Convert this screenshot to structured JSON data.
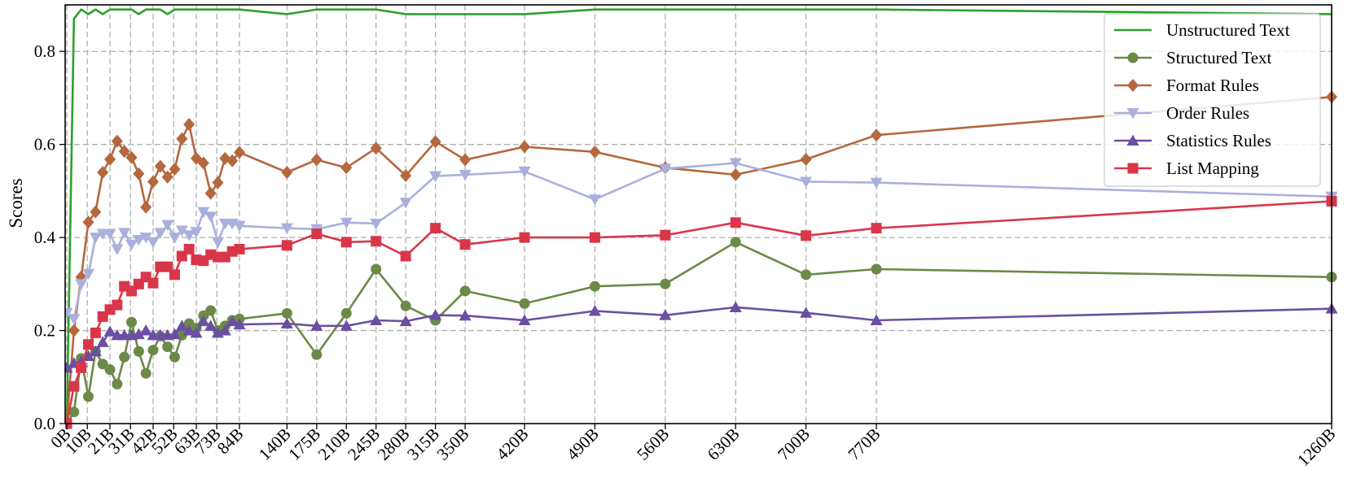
{
  "chart_data": {
    "type": "line",
    "ylabel": "Scores",
    "xlabel": "",
    "ylim": [
      0,
      0.9
    ],
    "yticks": [
      0.0,
      0.2,
      0.4,
      0.6,
      0.8
    ],
    "ytick_labels": [
      "0.0",
      "0.2",
      "0.4",
      "0.6",
      "0.8"
    ],
    "xticks": [
      0,
      10,
      21,
      31,
      42,
      52,
      63,
      73,
      84,
      140,
      175,
      210,
      245,
      280,
      315,
      350,
      420,
      490,
      560,
      630,
      700,
      770,
      1260
    ],
    "xtick_labels": [
      "0B",
      "10B",
      "21B",
      "31B",
      "42B",
      "52B",
      "63B",
      "73B",
      "84B",
      "140B",
      "175B",
      "210B",
      "245B",
      "280B",
      "315B",
      "350B",
      "420B",
      "490B",
      "560B",
      "630B",
      "700B",
      "770B",
      "1260B"
    ],
    "x_scale": "piecewise-linear (ticks evenly spaced in groups)",
    "grid": "dashed vertical at x ticks; dashed horizontal at y ticks",
    "legend_position": "top-right",
    "x": [
      0,
      3.5,
      7,
      10.5,
      14,
      17.5,
      21,
      24.5,
      28,
      31.5,
      35,
      38.5,
      42,
      45.5,
      49,
      52.5,
      56,
      59.5,
      63,
      66.5,
      70,
      73.5,
      77,
      80.5,
      84,
      140,
      175,
      210,
      245,
      280,
      315,
      350,
      420,
      490,
      560,
      630,
      700,
      770,
      1260
    ],
    "series": [
      {
        "name": "Unstructured Text",
        "color": "#2ca02c",
        "marker": "none",
        "values": [
          0.0,
          0.87,
          0.89,
          0.88,
          0.89,
          0.88,
          0.89,
          0.89,
          0.89,
          0.89,
          0.88,
          0.89,
          0.89,
          0.89,
          0.88,
          0.89,
          0.89,
          0.89,
          0.89,
          0.89,
          0.89,
          0.89,
          0.89,
          0.89,
          0.89,
          0.88,
          0.89,
          0.89,
          0.89,
          0.88,
          0.88,
          0.88,
          0.88,
          0.89,
          0.89,
          0.89,
          0.89,
          0.89,
          0.88
        ]
      },
      {
        "name": "Structured Text",
        "color": "#6b8a47",
        "marker": "circle",
        "values": [
          0.0,
          0.025,
          0.14,
          0.058,
          0.155,
          0.128,
          0.116,
          0.085,
          0.143,
          0.218,
          0.155,
          0.108,
          0.158,
          0.188,
          0.165,
          0.143,
          0.19,
          0.215,
          0.205,
          0.232,
          0.243,
          0.2,
          0.21,
          0.222,
          0.225,
          0.237,
          0.148,
          0.237,
          0.332,
          0.253,
          0.222,
          0.285,
          0.258,
          0.295,
          0.3,
          0.39,
          0.32,
          0.332,
          0.315
        ]
      },
      {
        "name": "Format Rules",
        "color": "#b5673d",
        "marker": "diamond",
        "values": [
          0.0,
          0.2,
          0.315,
          0.433,
          0.455,
          0.54,
          0.568,
          0.607,
          0.585,
          0.572,
          0.537,
          0.465,
          0.52,
          0.553,
          0.53,
          0.547,
          0.612,
          0.643,
          0.57,
          0.56,
          0.495,
          0.518,
          0.57,
          0.565,
          0.583,
          0.54,
          0.567,
          0.55,
          0.592,
          0.533,
          0.606,
          0.567,
          0.595,
          0.584,
          0.55,
          0.535,
          0.568,
          0.62,
          0.702
        ]
      },
      {
        "name": "Order Rules",
        "color": "#aab0dc",
        "marker": "triangle-down",
        "values": [
          0.238,
          0.225,
          0.3,
          0.322,
          0.4,
          0.408,
          0.408,
          0.375,
          0.41,
          0.385,
          0.395,
          0.4,
          0.39,
          0.41,
          0.427,
          0.4,
          0.415,
          0.405,
          0.412,
          0.455,
          0.445,
          0.39,
          0.43,
          0.43,
          0.425,
          0.42,
          0.418,
          0.432,
          0.43,
          0.475,
          0.532,
          0.535,
          0.542,
          0.482,
          0.548,
          0.56,
          0.52,
          0.518,
          0.488
        ]
      },
      {
        "name": "Statistics Rules",
        "color": "#6a4fa3",
        "marker": "triangle-up",
        "values": [
          0.12,
          0.13,
          0.133,
          0.145,
          0.155,
          0.175,
          0.198,
          0.19,
          0.19,
          0.19,
          0.192,
          0.2,
          0.19,
          0.19,
          0.19,
          0.192,
          0.21,
          0.2,
          0.195,
          0.22,
          0.21,
          0.195,
          0.2,
          0.22,
          0.213,
          0.215,
          0.21,
          0.21,
          0.222,
          0.22,
          0.233,
          0.232,
          0.222,
          0.242,
          0.233,
          0.25,
          0.238,
          0.222,
          0.247
        ]
      },
      {
        "name": "List Mapping",
        "color": "#d9364a",
        "marker": "square",
        "values": [
          0.0,
          0.08,
          0.12,
          0.17,
          0.195,
          0.23,
          0.245,
          0.255,
          0.295,
          0.285,
          0.3,
          0.315,
          0.302,
          0.337,
          0.337,
          0.32,
          0.36,
          0.375,
          0.352,
          0.35,
          0.363,
          0.358,
          0.358,
          0.37,
          0.375,
          0.383,
          0.408,
          0.39,
          0.392,
          0.36,
          0.42,
          0.385,
          0.4,
          0.4,
          0.405,
          0.432,
          0.404,
          0.42,
          0.478
        ]
      }
    ]
  }
}
